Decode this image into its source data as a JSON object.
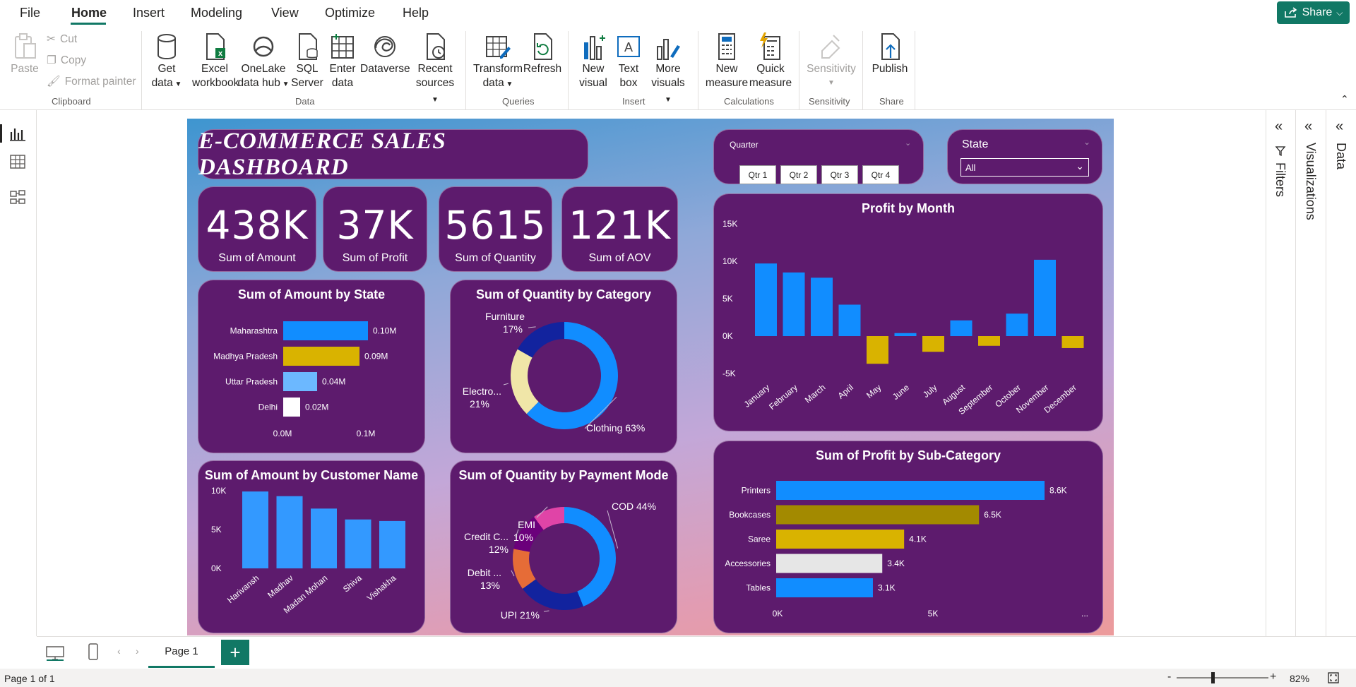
{
  "menu": {
    "items": [
      "File",
      "Home",
      "Insert",
      "Modeling",
      "View",
      "Optimize",
      "Help"
    ],
    "share_label": "Share"
  },
  "ribbon": {
    "clipboard": {
      "paste": "Paste",
      "cut": "Cut",
      "copy": "Copy",
      "format_painter": "Format painter",
      "group": "Clipboard"
    },
    "data": {
      "get_data": [
        "Get",
        "data"
      ],
      "excel": [
        "Excel",
        "workbook"
      ],
      "onelake": [
        "OneLake",
        "data hub"
      ],
      "sql": [
        "SQL",
        "Server"
      ],
      "enter": [
        "Enter",
        "data"
      ],
      "dataverse": "Dataverse",
      "recent": [
        "Recent",
        "sources"
      ],
      "group": "Data"
    },
    "queries": {
      "transform": [
        "Transform",
        "data"
      ],
      "refresh": "Refresh",
      "group": "Queries"
    },
    "insert": {
      "new_visual": [
        "New",
        "visual"
      ],
      "text_box": [
        "Text",
        "box"
      ],
      "more_visuals": [
        "More",
        "visuals"
      ],
      "group": "Insert"
    },
    "calculations": {
      "new_measure": [
        "New",
        "measure"
      ],
      "quick_measure": [
        "Quick",
        "measure"
      ],
      "group": "Calculations"
    },
    "sensitivity": {
      "label": "Sensitivity",
      "group": "Sensitivity"
    },
    "share": {
      "publish": "Publish",
      "group": "Share"
    }
  },
  "dashboard": {
    "title": "E-COMMERCE SALES DASHBOARD",
    "kpis": [
      {
        "value": "438K",
        "label": "Sum of Amount"
      },
      {
        "value": "37K",
        "label": "Sum of Profit"
      },
      {
        "value": "5615",
        "label": "Sum of Quantity"
      },
      {
        "value": "121K",
        "label": "Sum of AOV"
      }
    ],
    "quarter_slicer": {
      "title": "Quarter",
      "options": [
        "Qtr 1",
        "Qtr 2",
        "Qtr 3",
        "Qtr 4"
      ]
    },
    "state_slicer": {
      "title": "State",
      "value": "All"
    }
  },
  "chart_data": [
    {
      "id": "amount_by_state",
      "type": "bar",
      "orientation": "horizontal",
      "title": "Sum of Amount by State",
      "categories": [
        "Maharashtra",
        "Madhya Pradesh",
        "Uttar Pradesh",
        "Delhi"
      ],
      "values": [
        0.1,
        0.09,
        0.04,
        0.02
      ],
      "value_labels": [
        "0.10M",
        "0.09M",
        "0.04M",
        "0.02M"
      ],
      "colors": [
        "#118dff",
        "#d9b300",
        "#6cb8ff",
        "#ffffff"
      ],
      "x_ticks": [
        "0.0M",
        "0.1M"
      ]
    },
    {
      "id": "qty_by_category",
      "type": "pie",
      "donut": true,
      "title": "Sum of Quantity by Category",
      "slices": [
        {
          "label": "Clothing",
          "value": 63,
          "pct": "63%",
          "color": "#118dff"
        },
        {
          "label": "Electro...",
          "value": 21,
          "pct": "21%",
          "color": "#f0e6a8"
        },
        {
          "label": "Furniture",
          "value": 17,
          "pct": "17%",
          "color": "#12239e"
        }
      ]
    },
    {
      "id": "profit_by_month",
      "type": "bar",
      "title": "Profit by Month",
      "categories": [
        "January",
        "February",
        "March",
        "April",
        "May",
        "June",
        "July",
        "August",
        "September",
        "October",
        "November",
        "December"
      ],
      "values": [
        9700,
        8500,
        7800,
        4200,
        -3700,
        400,
        -2100,
        2100,
        -1300,
        3000,
        10200,
        -1600
      ],
      "ylim": [
        -5000,
        15000
      ],
      "y_ticks": [
        "15K",
        "10K",
        "5K",
        "0K",
        "-5K"
      ],
      "positive_color": "#118dff",
      "negative_color": "#d9b300"
    },
    {
      "id": "amount_by_customer",
      "type": "bar",
      "title": "Sum of Amount by Customer Name",
      "categories": [
        "Harivansh",
        "Madhav",
        "Madan Mohan",
        "Shiva",
        "Vishakha"
      ],
      "values": [
        9900,
        9300,
        7700,
        6300,
        6100
      ],
      "ylim": [
        0,
        10000
      ],
      "y_ticks": [
        "10K",
        "5K",
        "0K"
      ],
      "color": "#3399ff"
    },
    {
      "id": "qty_by_payment",
      "type": "pie",
      "donut": true,
      "title": "Sum of Quantity by Payment Mode",
      "slices": [
        {
          "label": "COD",
          "value": 44,
          "pct": "44%",
          "color": "#118dff"
        },
        {
          "label": "UPI",
          "value": 21,
          "pct": "21%",
          "color": "#12239e"
        },
        {
          "label": "Debit ...",
          "value": 13,
          "pct": "13%",
          "color": "#e66c37"
        },
        {
          "label": "Credit C...",
          "value": 12,
          "pct": "12%",
          "color": "#6b007b"
        },
        {
          "label": "EMI",
          "value": 10,
          "pct": "10%",
          "color": "#e044a7"
        }
      ]
    },
    {
      "id": "profit_by_subcategory",
      "type": "bar",
      "orientation": "horizontal",
      "title": "Sum of Profit by Sub-Category",
      "categories": [
        "Printers",
        "Bookcases",
        "Saree",
        "Accessories",
        "Tables"
      ],
      "values": [
        8600,
        6500,
        4100,
        3400,
        3100
      ],
      "value_labels": [
        "8.6K",
        "6.5K",
        "4.1K",
        "3.4K",
        "3.1K"
      ],
      "colors": [
        "#118dff",
        "#a38a00",
        "#d9b300",
        "#e6e6e6",
        "#118dff"
      ],
      "x_ticks": [
        "0K",
        "5K"
      ],
      "more": "..."
    }
  ],
  "panes": {
    "filters": "Filters",
    "visualizations": "Visualizations",
    "data": "Data"
  },
  "tabs": {
    "page": "Page 1",
    "add": "+"
  },
  "status": {
    "page_info": "Page 1 of 1",
    "zoom": "82%"
  }
}
